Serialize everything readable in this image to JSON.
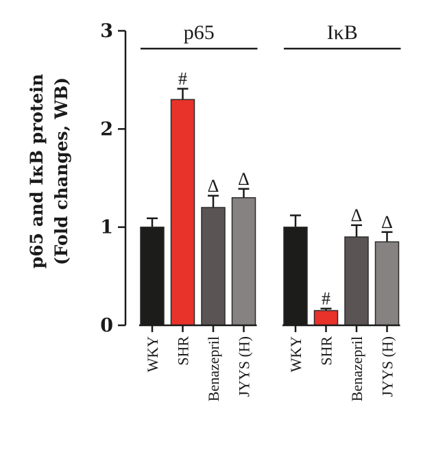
{
  "chart_data": {
    "type": "bar",
    "ylabel_lines": [
      "p65 and IκB protein",
      "(Fold changes, WB)"
    ],
    "ylim": [
      0,
      3
    ],
    "yticks": [
      "0",
      "1",
      "2",
      "3"
    ],
    "grid": false,
    "groups": [
      {
        "name": "p65",
        "categories": [
          "WKY",
          "SHR",
          "Benazepril",
          "JYYS (H)"
        ],
        "values": [
          1.0,
          2.3,
          1.2,
          1.3
        ],
        "errors": [
          0.09,
          0.11,
          0.12,
          0.09
        ],
        "annotations": [
          "",
          "#",
          "Δ",
          "Δ"
        ]
      },
      {
        "name": "IκB",
        "categories": [
          "WKY",
          "SHR",
          "Benazepril",
          "JYYS (H)"
        ],
        "values": [
          1.0,
          0.15,
          0.9,
          0.85
        ],
        "errors": [
          0.12,
          0.02,
          0.12,
          0.1
        ],
        "annotations": [
          "",
          "#",
          "Δ",
          "Δ"
        ]
      }
    ],
    "bar_colors": [
      "#1c1c1b",
      "#e8332a",
      "#5a5454",
      "#878282"
    ]
  }
}
